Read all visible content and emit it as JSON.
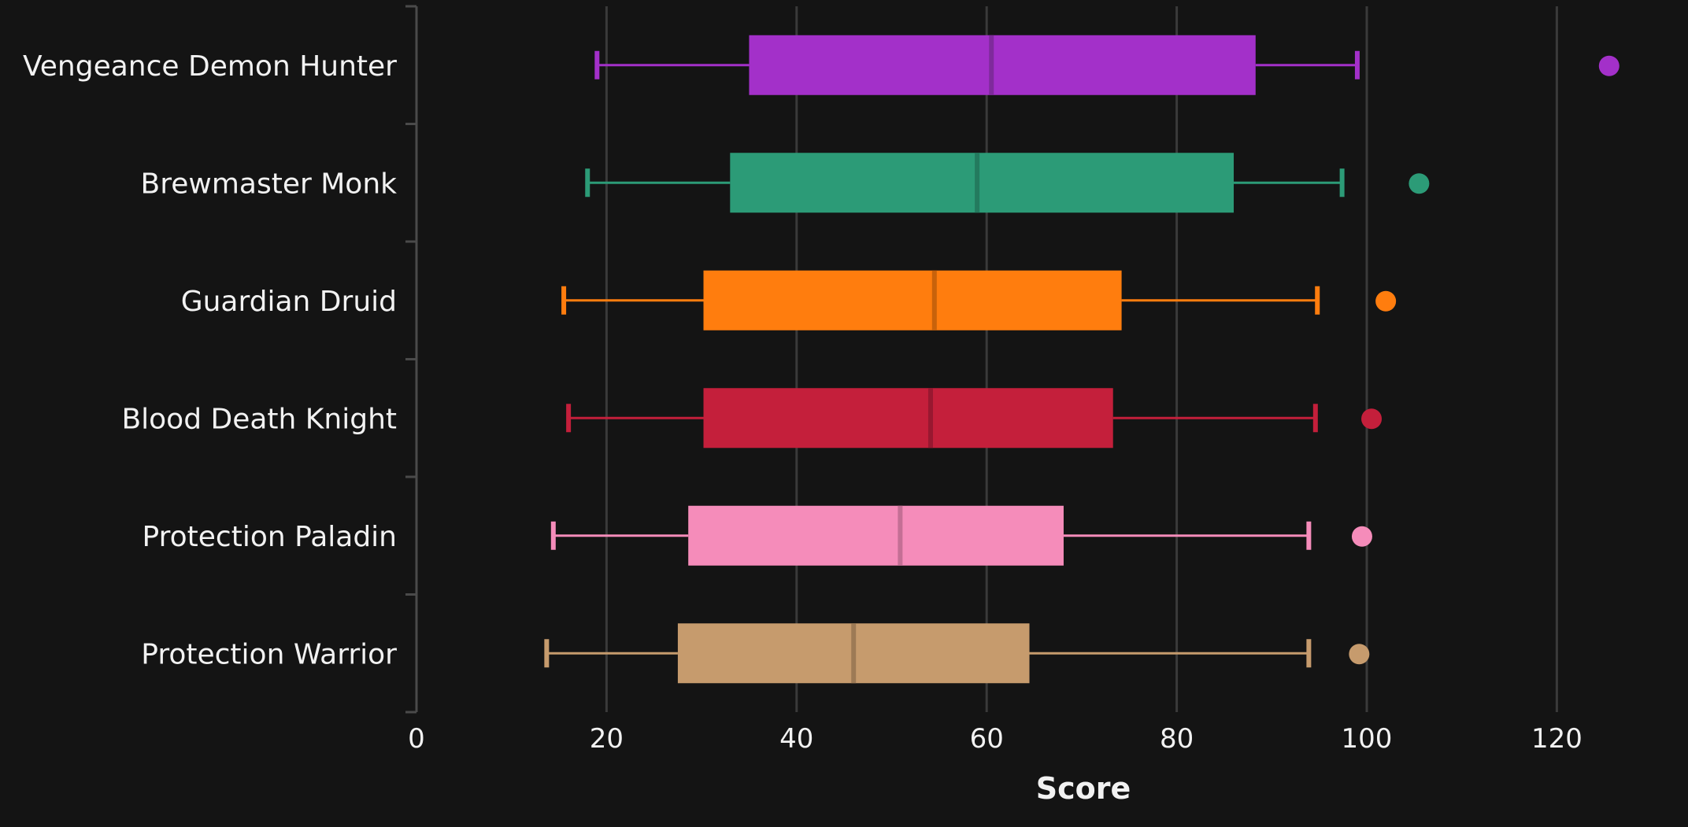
{
  "chart_data": {
    "type": "boxplot",
    "orientation": "horizontal",
    "xlabel": "Score",
    "ylabel": "",
    "xlim": [
      0,
      125
    ],
    "xticks": [
      0,
      20,
      40,
      60,
      80,
      100,
      120
    ],
    "grid": "vertical",
    "background": "#141414",
    "categories": [
      "Vengeance Demon Hunter",
      "Brewmaster Monk",
      "Guardian Druid",
      "Blood Death Knight",
      "Protection Paladin",
      "Protection Warrior"
    ],
    "series": [
      {
        "category": "Vengeance Demon Hunter",
        "color": "#a330c9",
        "median_color": "#7e2a9c",
        "whisker_low": 19,
        "q1": 35,
        "median": 60.5,
        "q3": 88.3,
        "whisker_high": 99,
        "outliers": [
          125.5
        ]
      },
      {
        "category": "Brewmaster Monk",
        "color": "#2c9b77",
        "median_color": "#237a5e",
        "whisker_low": 18,
        "q1": 33,
        "median": 59,
        "q3": 86,
        "whisker_high": 97.4,
        "outliers": [
          105.5
        ]
      },
      {
        "category": "Guardian Druid",
        "color": "#ff7d0e",
        "median_color": "#c8620b",
        "whisker_low": 15.5,
        "q1": 30.2,
        "median": 54.5,
        "q3": 74.2,
        "whisker_high": 94.8,
        "outliers": [
          102
        ]
      },
      {
        "category": "Blood Death Knight",
        "color": "#c41f3b",
        "median_color": "#981830",
        "whisker_low": 16,
        "q1": 30.2,
        "median": 54.1,
        "q3": 73.3,
        "whisker_high": 94.6,
        "outliers": [
          100.5
        ]
      },
      {
        "category": "Protection Paladin",
        "color": "#f58cba",
        "median_color": "#c46f95",
        "whisker_low": 14.4,
        "q1": 28.6,
        "median": 50.9,
        "q3": 68.1,
        "whisker_high": 93.9,
        "outliers": [
          99.5
        ]
      },
      {
        "category": "Protection Warrior",
        "color": "#c69b6d",
        "median_color": "#9d7a55",
        "whisker_low": 13.7,
        "q1": 27.5,
        "median": 46,
        "q3": 64.5,
        "whisker_high": 93.9,
        "outliers": [
          99.2
        ]
      }
    ]
  }
}
